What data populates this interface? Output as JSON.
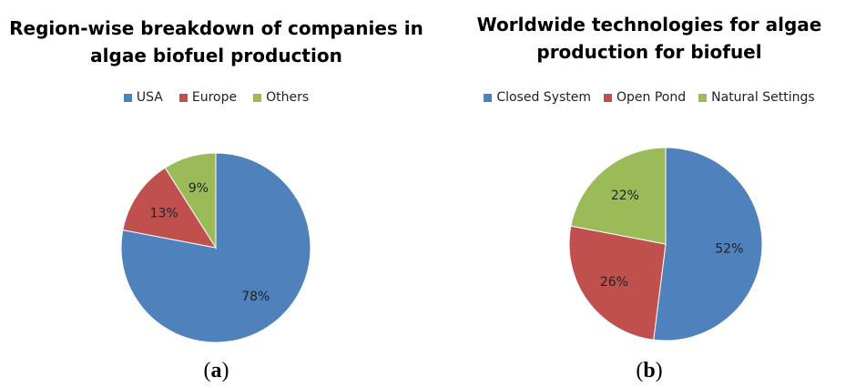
{
  "chart_data": [
    {
      "type": "pie",
      "title_lines": [
        "Region-wise breakdown of companies in",
        "algae biofuel production"
      ],
      "categories": [
        "USA",
        "Europe",
        "Others"
      ],
      "values": [
        78,
        13,
        9
      ],
      "labels": [
        "78%",
        "13%",
        "9%"
      ],
      "colors": [
        "#4F81BD",
        "#C0504D",
        "#9BBB59"
      ],
      "legend_position": "top",
      "panel_label": "a"
    },
    {
      "type": "pie",
      "title_lines": [
        "Worldwide technologies for algae",
        "production for biofuel"
      ],
      "categories": [
        "Closed System",
        "Open Pond",
        "Natural Settings"
      ],
      "values": [
        52,
        26,
        22
      ],
      "labels": [
        "52%",
        "26%",
        "22%"
      ],
      "colors": [
        "#4F81BD",
        "#C0504D",
        "#9BBB59"
      ],
      "legend_position": "top",
      "panel_label": "b"
    }
  ]
}
